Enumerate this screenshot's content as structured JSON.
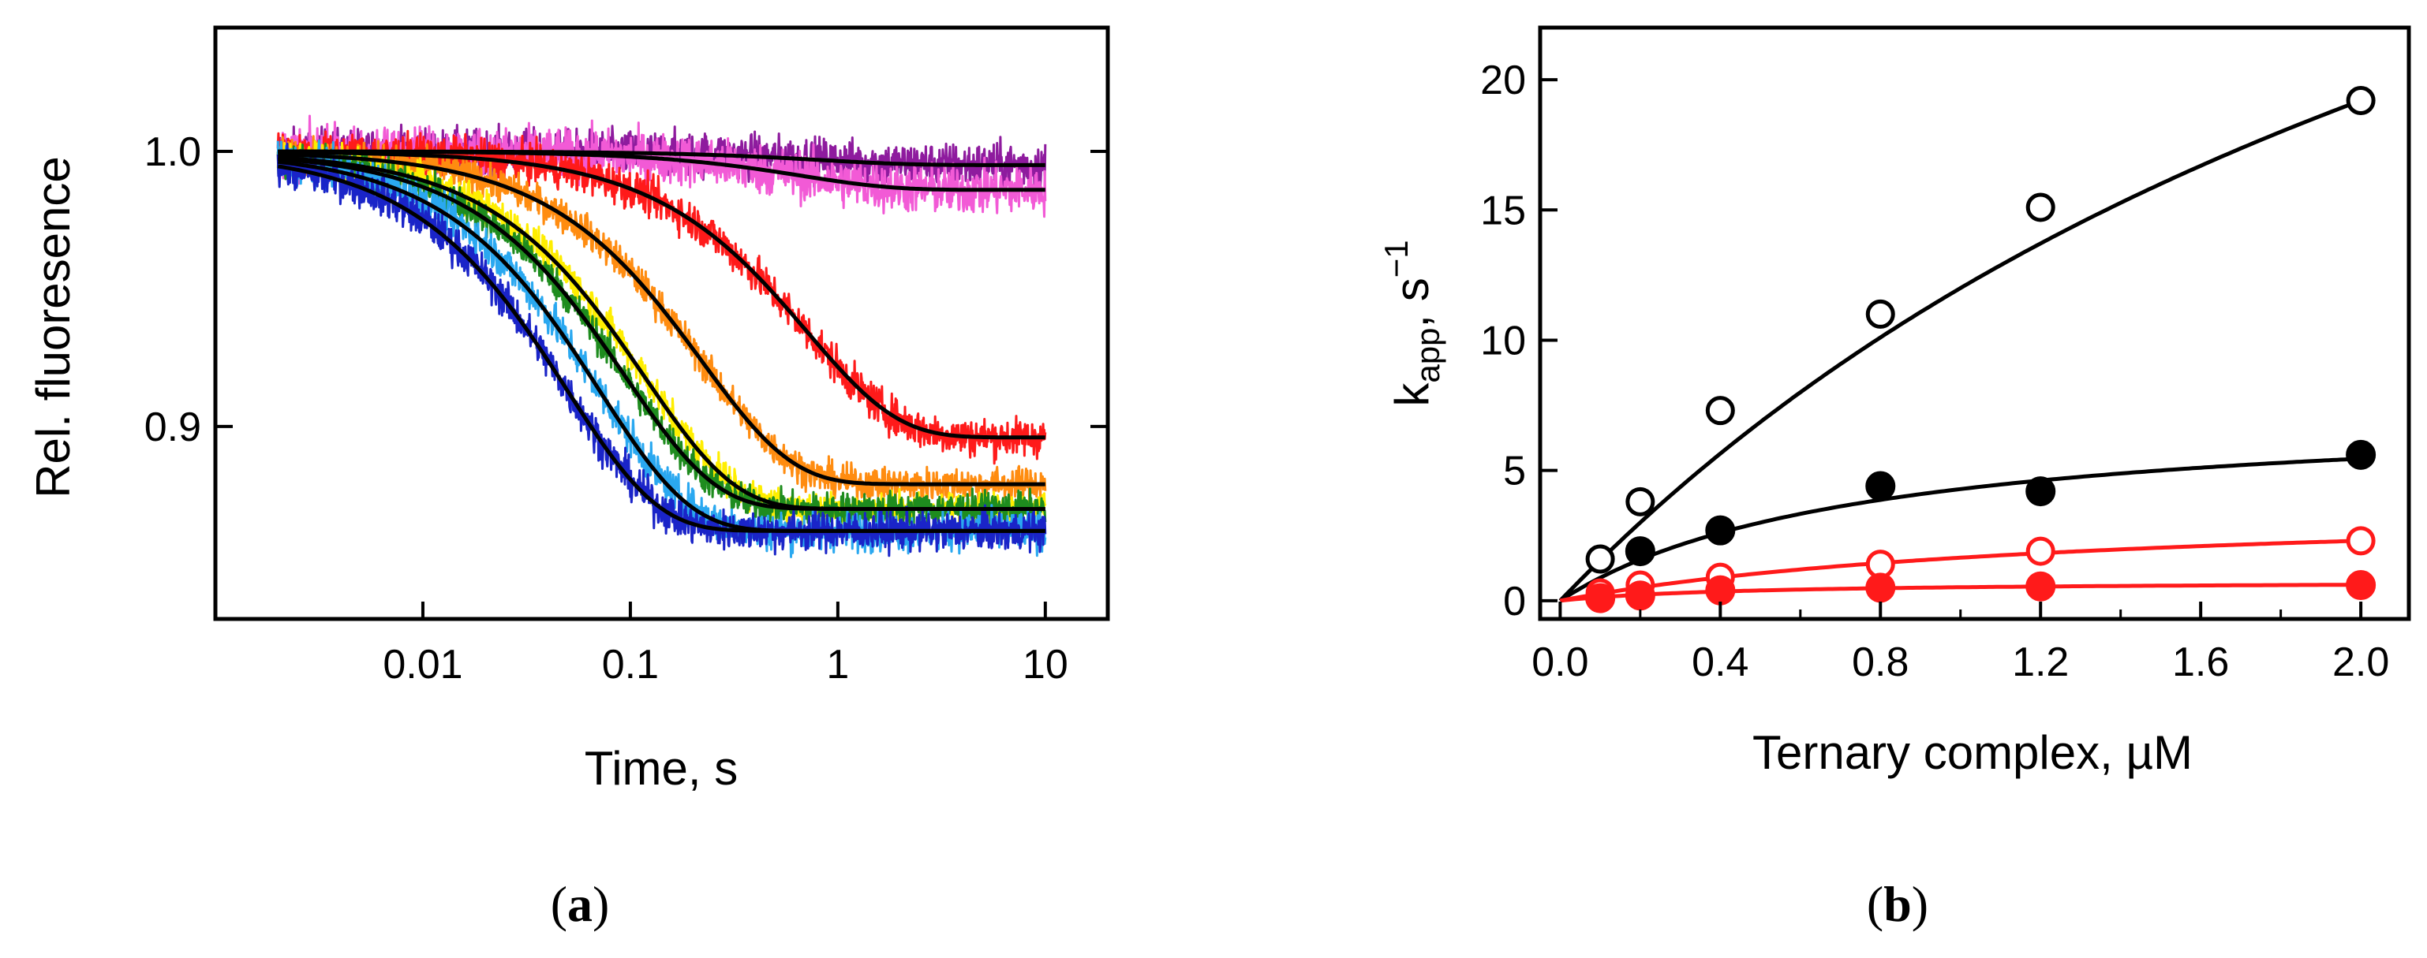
{
  "chart_data": [
    {
      "type": "line",
      "panel_label": "a",
      "xlabel": "Time, s",
      "ylabel": "Rel. fluoresence",
      "xscale": "log",
      "xlim": [
        0.001,
        20
      ],
      "ylim": [
        0.83,
        1.045
      ],
      "xticks": [
        {
          "value": 0.01,
          "label": "0.01"
        },
        {
          "value": 0.1,
          "label": "0.1"
        },
        {
          "value": 1,
          "label": "1"
        },
        {
          "value": 10,
          "label": "10"
        }
      ],
      "yticks": [
        {
          "value": 0.9,
          "label": "0.9"
        },
        {
          "value": 1.0,
          "label": "1.0"
        }
      ],
      "fit_color": "#000000",
      "series": [
        {
          "name": "purple trace",
          "color": "#8e1b9e",
          "amplitude": 0.005,
          "k": 1.2,
          "noise": 0.008
        },
        {
          "name": "pink trace",
          "color": "#f25ad6",
          "amplitude": 0.014,
          "k": 1.5,
          "noise": 0.009
        },
        {
          "name": "red trace",
          "color": "#ff1a1a",
          "amplitude": 0.104,
          "k": 1.4,
          "noise": 0.007
        },
        {
          "name": "orange trace",
          "color": "#ff8c10",
          "amplitude": 0.121,
          "k": 4.5,
          "noise": 0.006
        },
        {
          "name": "yellow trace",
          "color": "#ffee00",
          "amplitude": 0.13,
          "k": 8.5,
          "noise": 0.006
        },
        {
          "name": "green trace",
          "color": "#1e8c1e",
          "amplitude": 0.13,
          "k": 10.5,
          "noise": 0.006
        },
        {
          "name": "light blue trace",
          "color": "#2aa8f0",
          "amplitude": 0.138,
          "k": 14.0,
          "noise": 0.007
        },
        {
          "name": "dark blue trace",
          "color": "#1a24c8",
          "amplitude": 0.138,
          "k": 20.0,
          "noise": 0.007
        }
      ]
    },
    {
      "type": "scatter",
      "panel_label": "b",
      "xlabel": "Ternary complex, µM",
      "ylabel_base": "k",
      "ylabel_sub": "app",
      "ylabel_rest": ", s",
      "ylabel_sup": "−1",
      "xlim": [
        -0.05,
        2.12
      ],
      "ylim": [
        -0.7,
        22
      ],
      "xticks": [
        {
          "value": 0.0,
          "label": "0.0"
        },
        {
          "value": 0.4,
          "label": "0.4"
        },
        {
          "value": 0.8,
          "label": "0.8"
        },
        {
          "value": 1.2,
          "label": "1.2"
        },
        {
          "value": 1.6,
          "label": "1.6"
        },
        {
          "value": 2.0,
          "label": "2.0"
        }
      ],
      "yticks": [
        {
          "value": 0,
          "label": "0"
        },
        {
          "value": 5,
          "label": "5"
        },
        {
          "value": 10,
          "label": "10"
        },
        {
          "value": 15,
          "label": "15"
        },
        {
          "value": 20,
          "label": "20"
        }
      ],
      "series": [
        {
          "name": "open black circles",
          "marker": "open",
          "color": "#000000",
          "x": [
            0.1,
            0.2,
            0.4,
            0.8,
            1.2,
            2.0
          ],
          "y": [
            1.6,
            3.8,
            7.3,
            11.0,
            15.1,
            19.2
          ],
          "fit": {
            "kmax": 48.0,
            "K": 3.0
          }
        },
        {
          "name": "filled black circles",
          "marker": "filled",
          "color": "#000000",
          "x": [
            0.2,
            0.4,
            0.8,
            1.2,
            2.0
          ],
          "y": [
            1.9,
            2.7,
            4.4,
            4.2,
            5.6
          ],
          "fit": {
            "kmax": 7.5,
            "K": 0.75
          }
        },
        {
          "name": "open red circles",
          "marker": "open",
          "color": "#ff1a1a",
          "x": [
            0.1,
            0.2,
            0.4,
            0.8,
            1.2,
            2.0
          ],
          "y": [
            0.3,
            0.6,
            0.9,
            1.4,
            1.9,
            2.3
          ],
          "fit": {
            "kmax": 3.8,
            "K": 1.3
          }
        },
        {
          "name": "filled red circles",
          "marker": "filled",
          "color": "#ff1a1a",
          "x": [
            0.1,
            0.2,
            0.4,
            0.8,
            1.2,
            2.0
          ],
          "y": [
            0.1,
            0.2,
            0.4,
            0.5,
            0.55,
            0.6
          ],
          "fit": {
            "kmax": 0.75,
            "K": 0.45
          }
        }
      ]
    }
  ]
}
